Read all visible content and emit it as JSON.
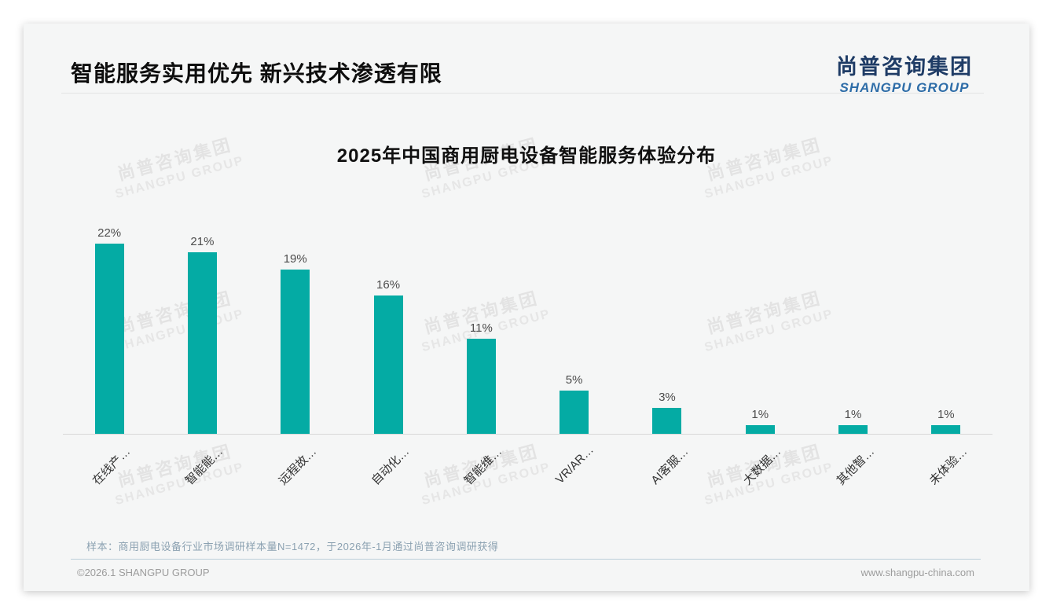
{
  "header": {
    "title": "智能服务实用优先 新兴技术渗透有限",
    "logo_cn": "尚普咨询集团",
    "logo_en": "SHANGPU GROUP"
  },
  "watermark": {
    "line1": "尚普咨询集团",
    "line2": "SHANGPU GROUP"
  },
  "chart_data": {
    "type": "bar",
    "title": "2025年中国商用厨电设备智能服务体验分布",
    "categories": [
      "在线产…",
      "智能能…",
      "远程故…",
      "自动化…",
      "智能维…",
      "VR/AR…",
      "AI客服…",
      "大数据…",
      "其他智…",
      "未体验…"
    ],
    "values": [
      22,
      21,
      19,
      16,
      11,
      5,
      3,
      1,
      1,
      1
    ],
    "value_labels": [
      "22%",
      "21%",
      "19%",
      "16%",
      "11%",
      "5%",
      "3%",
      "1%",
      "1%",
      "1%"
    ],
    "unit": "%",
    "bar_color": "#04ABA4",
    "ylim": [
      0,
      24
    ],
    "grid": false,
    "legend": false,
    "xlabel": "",
    "ylabel": ""
  },
  "footnote": {
    "text": "样本：商用厨电设备行业市场调研样本量N=1472，于2026年-1月通过尚普咨询调研获得"
  },
  "footer": {
    "copyright": "©2026.1 SHANGPU GROUP",
    "website": "www.shangpu-china.com"
  }
}
